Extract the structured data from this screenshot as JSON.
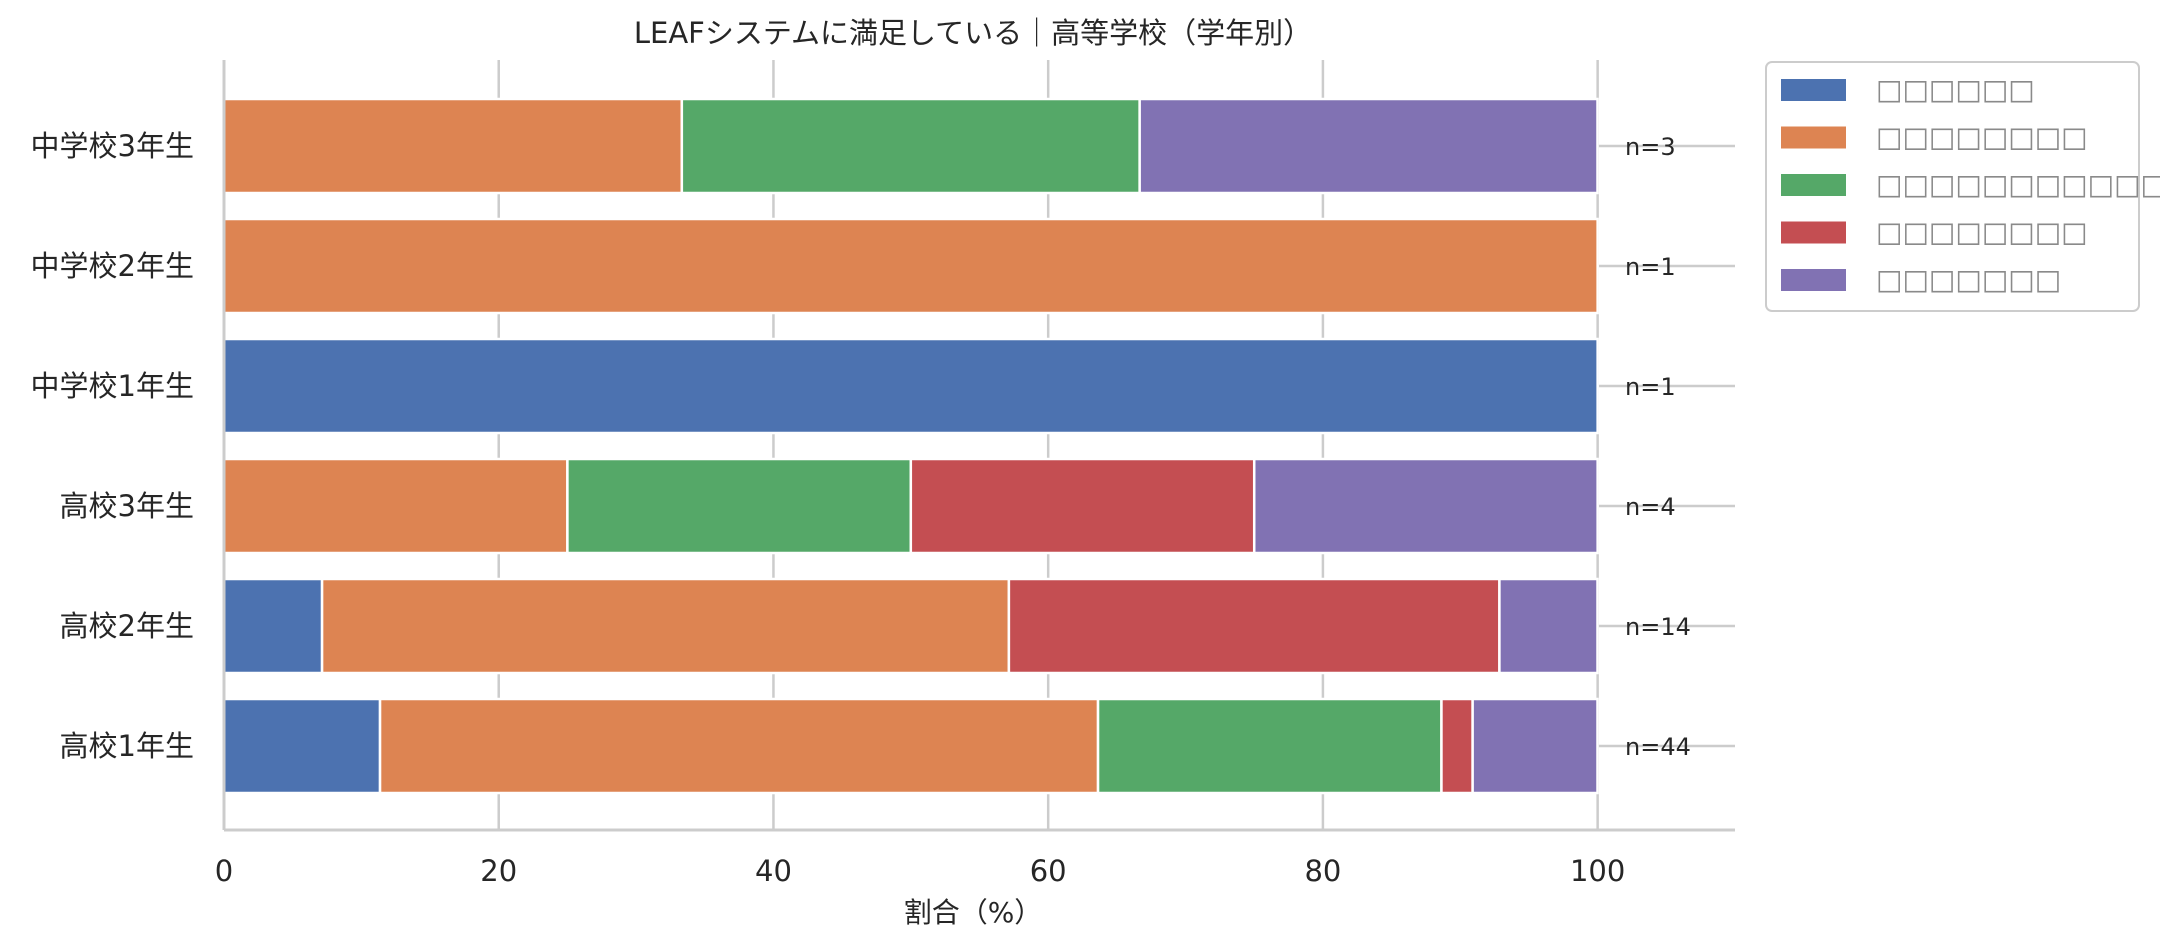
{
  "chart_data": {
    "type": "bar",
    "orientation": "horizontal",
    "stacked": true,
    "title": "LEAFシステムに満足している｜高等学校（学年別）",
    "xlabel": "割合（%）",
    "ylabel": "",
    "xlim": [
      0,
      110
    ],
    "xticks": [
      "0",
      "20",
      "40",
      "60",
      "80",
      "100"
    ],
    "grid": true,
    "legend_position": "outside-top-right",
    "categories": [
      "中学校3年生",
      "中学校2年生",
      "中学校1年生",
      "高校3年生",
      "高校2年生",
      "高校1年生"
    ],
    "n_labels": [
      "n=3",
      "n=1",
      "n=1",
      "n=4",
      "n=14",
      "n=44"
    ],
    "series": [
      {
        "name": "□□□□□□",
        "color": "#4c72b0",
        "values": [
          0,
          0,
          100,
          0,
          7.14,
          11.36
        ]
      },
      {
        "name": "□□□□□□□□",
        "color": "#dd8452",
        "values": [
          33.33,
          100,
          0,
          25,
          50,
          52.27
        ]
      },
      {
        "name": "□□□□□□□□□□□□",
        "color": "#55a868",
        "values": [
          33.33,
          0,
          0,
          25,
          0,
          25
        ]
      },
      {
        "name": "□□□□□□□□",
        "color": "#c44e52",
        "values": [
          0,
          0,
          0,
          25,
          35.71,
          2.27
        ]
      },
      {
        "name": "□□□□□□□",
        "color": "#8172b3",
        "values": [
          33.33,
          0,
          0,
          25,
          7.14,
          9.09
        ]
      }
    ]
  }
}
